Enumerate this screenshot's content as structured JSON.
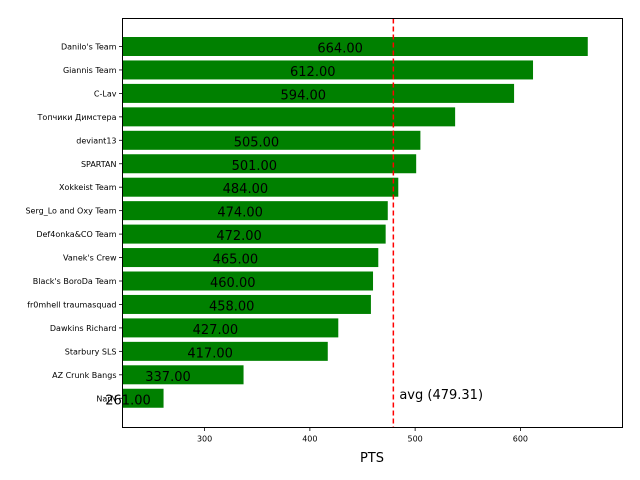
{
  "chart_data": {
    "type": "bar",
    "orientation": "horizontal",
    "categories": [
      "Danilo's Team",
      "Giannis Team",
      "C-Lav",
      "Топчики Димстера",
      "deviant13",
      "SPARTAN",
      "Xokkeist Team",
      "Serg_Lo and Oxy Team",
      "Def4onka&CO Team",
      "Vanek's Crew",
      "Black's BoroDa Team",
      "fr0mhell traumasquad",
      "Dawkins Richard",
      "Starbury SLS",
      "AZ Crunk Bangs",
      "NarN"
    ],
    "values": [
      664,
      612,
      594,
      538,
      505,
      501,
      484,
      474,
      472,
      465,
      460,
      458,
      427,
      417,
      337,
      261
    ],
    "bar_labels": [
      "664.00",
      "612.00",
      "594.00",
      "",
      "505.00",
      "501.00",
      "484.00",
      "474.00",
      "472.00",
      "465.00",
      "460.00",
      "458.00",
      "427.00",
      "417.00",
      "337.00",
      "261.00"
    ],
    "xlabel": "PTS",
    "ylabel": "",
    "title": "",
    "xlim": [
      222,
      697
    ],
    "xticks": [
      "300",
      "400",
      "500",
      "600"
    ],
    "bar_color": "#008000",
    "reference_line": {
      "value": 479.31,
      "label": "avg (479.31)",
      "color": "#ff0000",
      "style": "dashed"
    },
    "grid": false,
    "legend": "none"
  }
}
